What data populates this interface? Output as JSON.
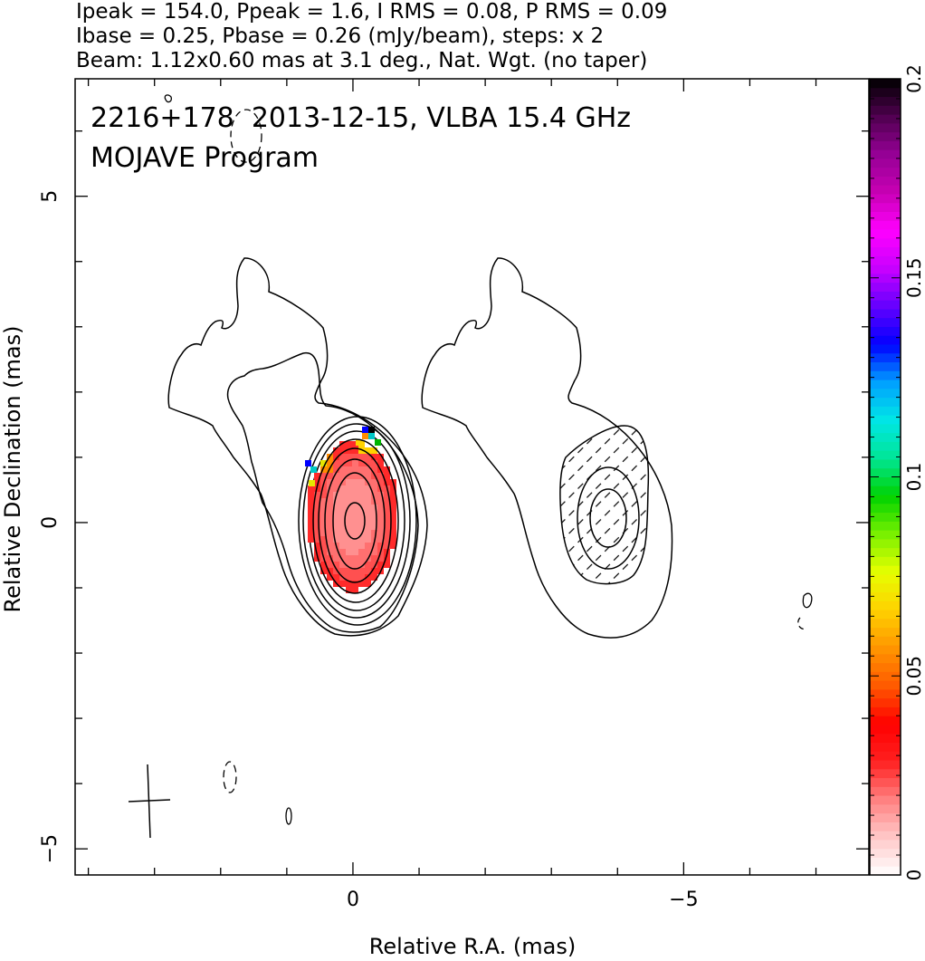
{
  "header": {
    "line1": "Ipeak = 154.0, Ppeak = 1.6, I RMS = 0.08, P RMS = 0.09",
    "line2": "Ibase = 0.25, Pbase = 0.26 (mJy/beam), steps: x 2",
    "line3": "Beam: 1.12x0.60 mas at 3.1 deg., Nat. Wgt. (no taper)"
  },
  "chart_data": {
    "type": "heatmap",
    "title": "2216+178  2013-12-15, VLBA 15.4 GHz",
    "subtitle": "MOJAVE Program",
    "xlabel": "Relative R.A. (mas)",
    "ylabel": "Relative Declination (mas)",
    "xlim": [
      4.2,
      -7.8
    ],
    "ylim": [
      -5.4,
      6.8
    ],
    "x_ticks": [
      0,
      -5
    ],
    "y_ticks": [
      5,
      0,
      -5
    ],
    "grid": false,
    "colorbar": {
      "range": [
        0,
        0.2
      ],
      "ticks": [
        0,
        0.05,
        0.1,
        0.15,
        0.2
      ],
      "palette": [
        "#ffffff",
        "#ffc8c8",
        "#ff8080",
        "#ff2020",
        "#ff0000",
        "#ff5a00",
        "#ff9600",
        "#ffd200",
        "#e6ff00",
        "#78f000",
        "#00d200",
        "#00e696",
        "#00e6e6",
        "#00a0ff",
        "#0000ff",
        "#6400ff",
        "#c800ff",
        "#ff00ff",
        "#c800b4",
        "#960096",
        "#500050",
        "#000000"
      ]
    },
    "left_panel": {
      "center": [
        0,
        0
      ],
      "description": "Stokes I contours (base 0.25 mJy/beam, steps x2) with fractional polarization colormap",
      "core_fractional_polarization": 0.015
    },
    "right_panel": {
      "center": [
        -4,
        0
      ],
      "description": "Stokes I lowest contours with polarized intensity contours (hatched)"
    },
    "beam": {
      "major_mas": 1.12,
      "minor_mas": 0.6,
      "pa_deg": 3.1
    }
  }
}
